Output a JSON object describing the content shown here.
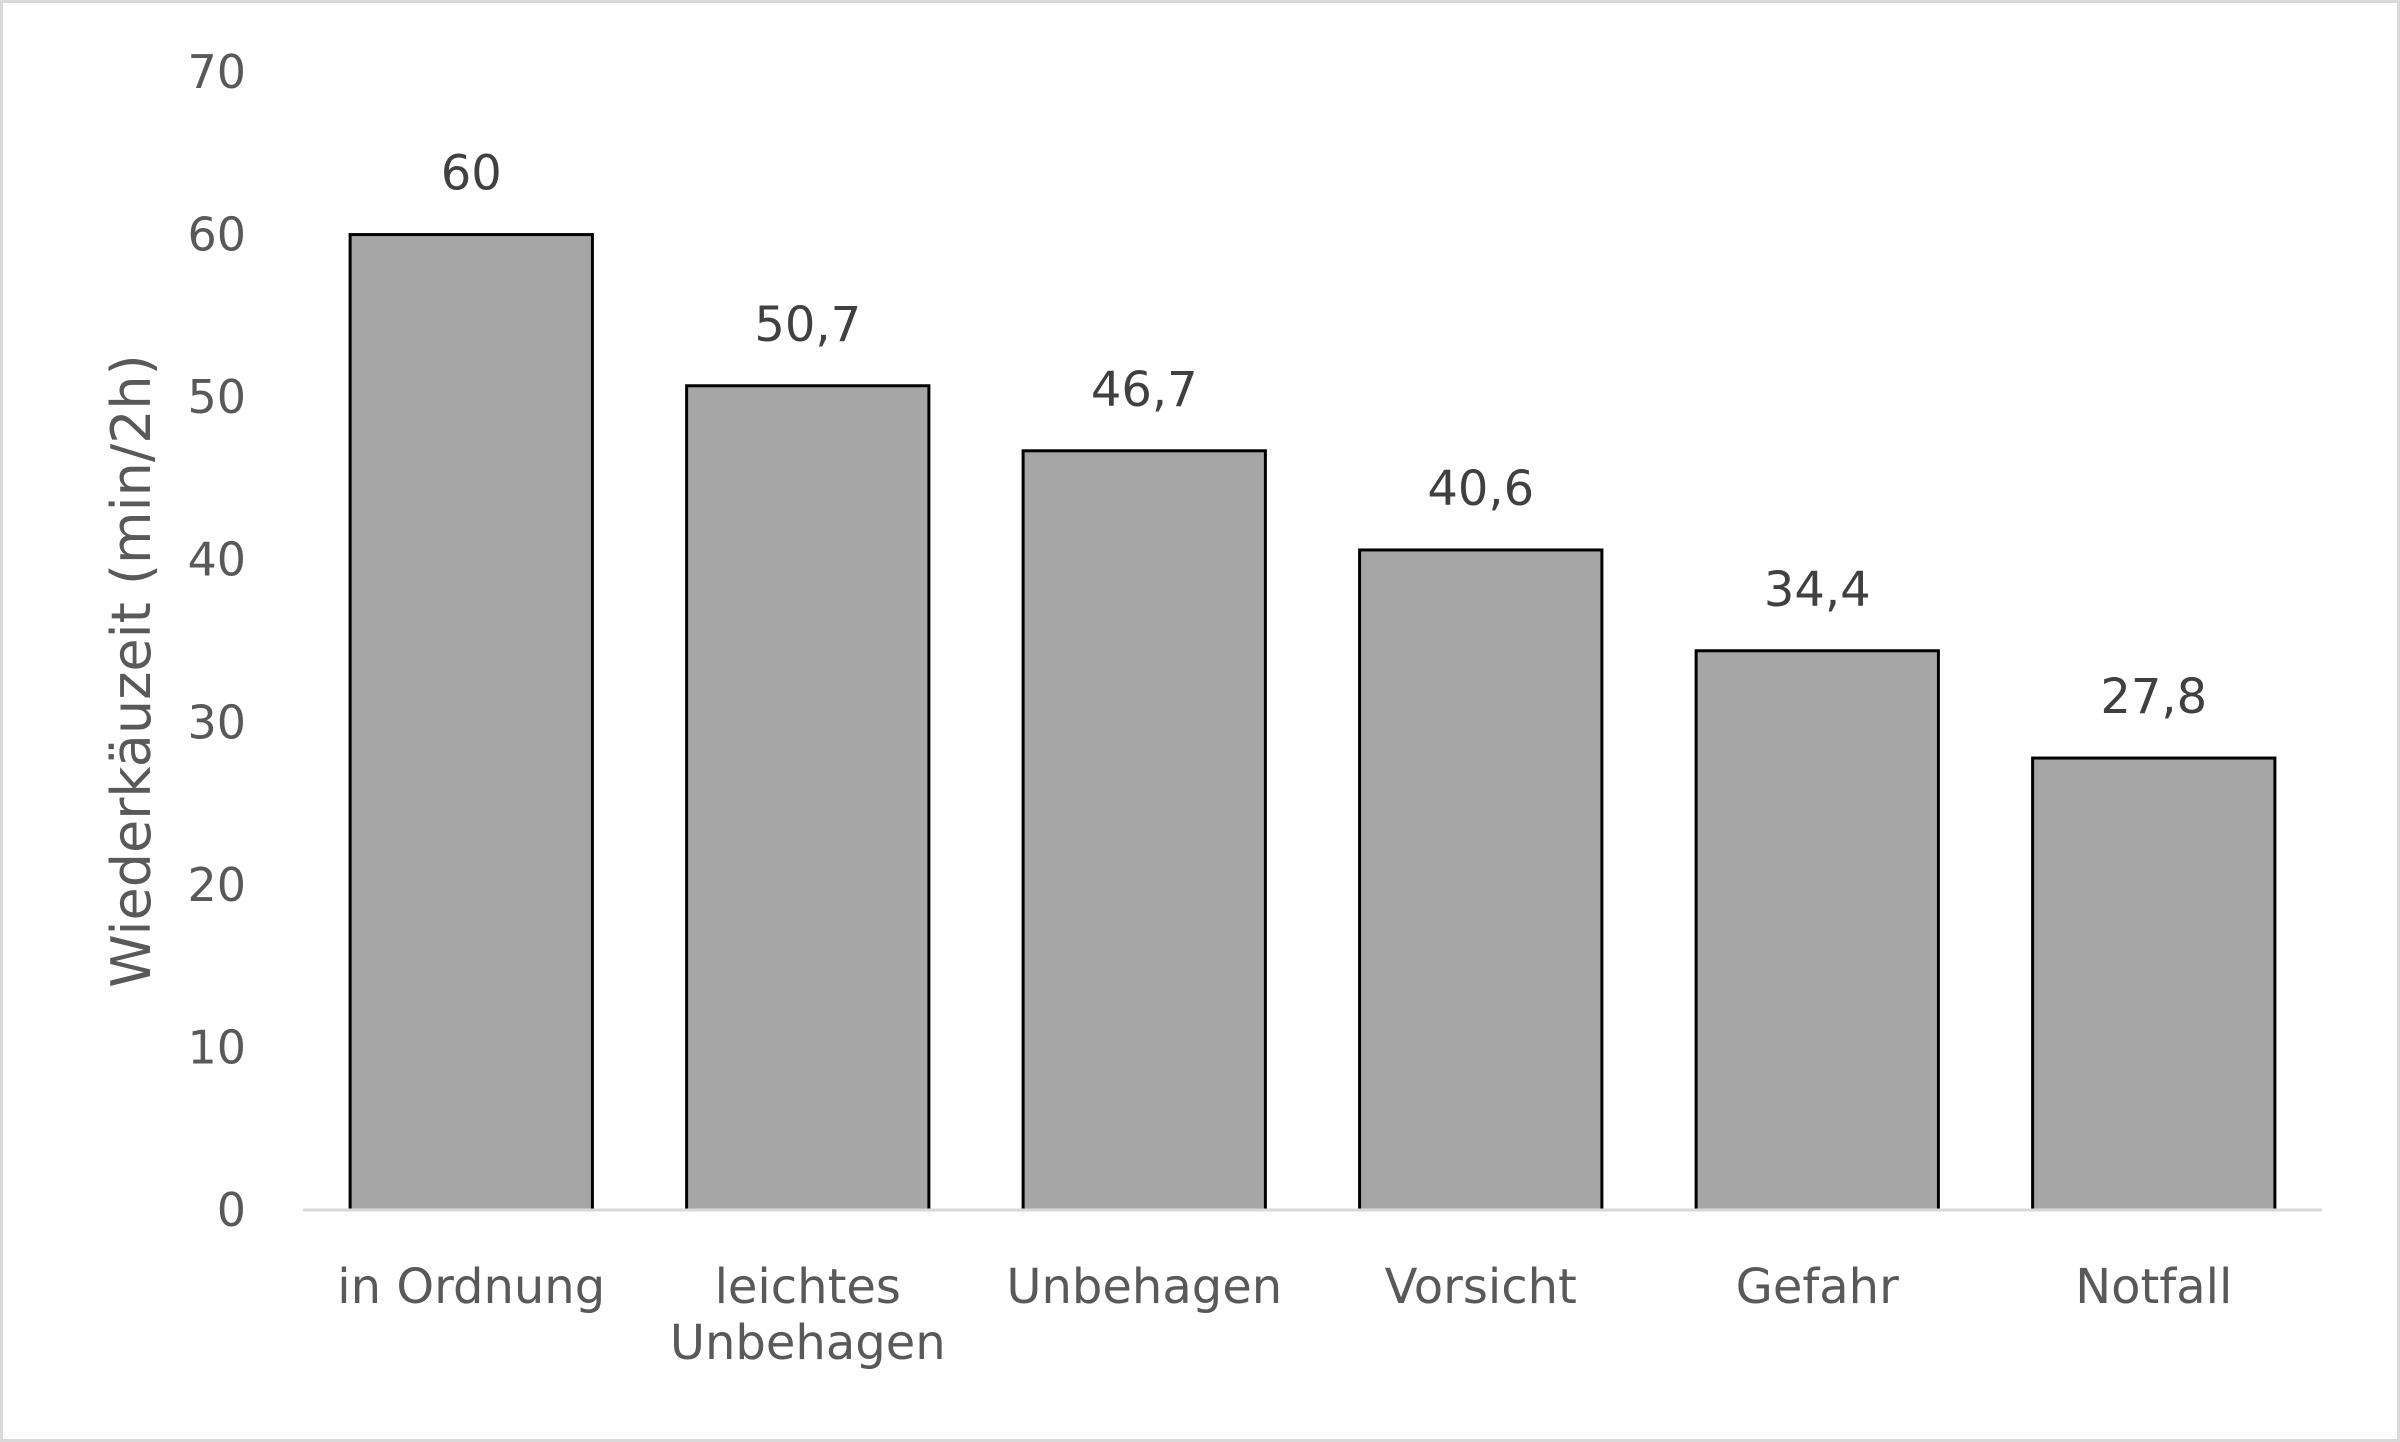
{
  "chart_data": {
    "type": "bar",
    "title": "",
    "xlabel": "",
    "ylabel": "Wiederkäuzeit (min/2h)",
    "ylim": [
      0,
      70
    ],
    "yticks": [
      0,
      10,
      20,
      30,
      40,
      50,
      60,
      70
    ],
    "categories": [
      [
        "in Ordnung"
      ],
      [
        "leichtes",
        "Unbehagen"
      ],
      [
        "Unbehagen"
      ],
      [
        "Vorsicht"
      ],
      [
        "Gefahr"
      ],
      [
        "Notfall"
      ]
    ],
    "values": [
      60,
      50.7,
      46.7,
      40.6,
      34.4,
      27.8
    ],
    "data_labels": [
      "60",
      "50,7",
      "46,7",
      "40,6",
      "34,4",
      "27,8"
    ],
    "grid": false,
    "legend": "none",
    "colors": {
      "bar_fill": "#a6a6a6",
      "bar_stroke": "#000000",
      "axis_line": "#d9d9d9",
      "text": "#595959"
    }
  }
}
